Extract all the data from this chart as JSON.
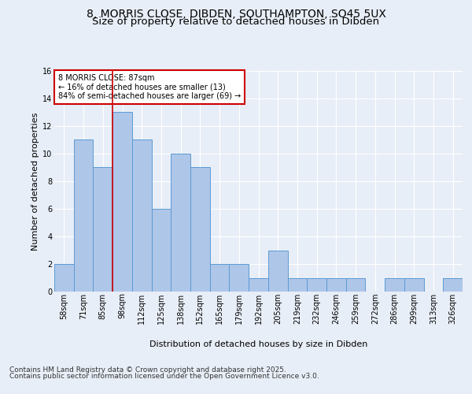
{
  "title_line1": "8, MORRIS CLOSE, DIBDEN, SOUTHAMPTON, SO45 5UX",
  "title_line2": "Size of property relative to detached houses in Dibden",
  "xlabel": "Distribution of detached houses by size in Dibden",
  "ylabel": "Number of detached properties",
  "bar_labels": [
    "58sqm",
    "71sqm",
    "85sqm",
    "98sqm",
    "112sqm",
    "125sqm",
    "138sqm",
    "152sqm",
    "165sqm",
    "179sqm",
    "192sqm",
    "205sqm",
    "219sqm",
    "232sqm",
    "246sqm",
    "259sqm",
    "272sqm",
    "286sqm",
    "299sqm",
    "313sqm",
    "326sqm"
  ],
  "bar_values": [
    2,
    11,
    9,
    13,
    11,
    6,
    10,
    9,
    2,
    2,
    1,
    3,
    1,
    1,
    1,
    1,
    0,
    1,
    1,
    0,
    1
  ],
  "bar_color": "#aec6e8",
  "bar_edge_color": "#5b9bd5",
  "annotation_text": "8 MORRIS CLOSE: 87sqm\n← 16% of detached houses are smaller (13)\n84% of semi-detached houses are larger (69) →",
  "annotation_box_color": "white",
  "annotation_box_edge": "#cc0000",
  "highlight_line_color": "#cc0000",
  "ylim": [
    0,
    16
  ],
  "yticks": [
    0,
    2,
    4,
    6,
    8,
    10,
    12,
    14,
    16
  ],
  "background_color": "#e8eef7",
  "plot_background": "#e8eef7",
  "footer_line1": "Contains HM Land Registry data © Crown copyright and database right 2025.",
  "footer_line2": "Contains public sector information licensed under the Open Government Licence v3.0.",
  "title_fontsize": 10,
  "subtitle_fontsize": 9.5,
  "axis_label_fontsize": 8,
  "tick_fontsize": 7,
  "annotation_fontsize": 7,
  "footer_fontsize": 6.5
}
